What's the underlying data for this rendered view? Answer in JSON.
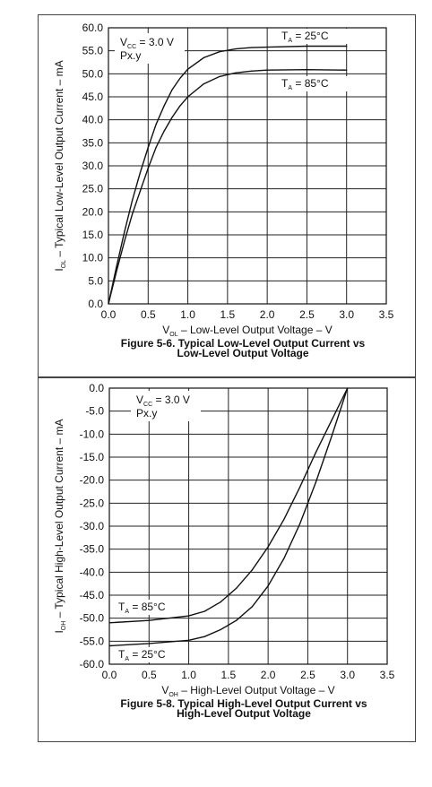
{
  "chart_data": [
    {
      "type": "line",
      "caption_line1": "Figure 5-6. Typical Low-Level Output Current vs",
      "caption_line2": "Low-Level Output Voltage",
      "xlabel": {
        "prefix": "V",
        "sub": "OL",
        "rest": " – Low-Level Output Voltage – V"
      },
      "ylabel": {
        "prefix": "I",
        "sub": "OL",
        "rest": " – Typical Low-Level Output Current – mA"
      },
      "xlim": [
        0,
        3.5
      ],
      "ylim": [
        0,
        60
      ],
      "x_ticks": [
        "0.0",
        "0.5",
        "1.0",
        "1.5",
        "2.0",
        "2.5",
        "3.0",
        "3.5"
      ],
      "y_ticks": [
        "60.0",
        "55.0",
        "50.0",
        "45.0",
        "40.0",
        "35.0",
        "30.0",
        "25.0",
        "20.0",
        "15.0",
        "10.0",
        "5.0",
        "0.0"
      ],
      "grid": true,
      "condition": {
        "line1_prefix": "V",
        "line1_sub": "CC",
        "line1_rest": " = 3.0 V",
        "line2": "Px.y"
      },
      "series": [
        {
          "name": {
            "prefix": "T",
            "sub": "A",
            "rest": " = 25°C"
          },
          "x": [
            0,
            0.1,
            0.2,
            0.3,
            0.4,
            0.5,
            0.6,
            0.7,
            0.8,
            0.9,
            1.0,
            1.2,
            1.4,
            1.6,
            1.8,
            2.0,
            2.5,
            3.0
          ],
          "y": [
            0,
            8,
            15.5,
            22.5,
            28.5,
            34,
            39,
            43,
            46.5,
            49,
            51,
            53.5,
            54.8,
            55.4,
            55.7,
            55.8,
            56,
            56
          ]
        },
        {
          "name": {
            "prefix": "T",
            "sub": "A",
            "rest": " = 85°C"
          },
          "x": [
            0,
            0.1,
            0.2,
            0.3,
            0.4,
            0.5,
            0.6,
            0.7,
            0.8,
            0.9,
            1.0,
            1.2,
            1.4,
            1.6,
            1.8,
            2.0,
            2.5,
            3.0
          ],
          "y": [
            0,
            7,
            13.5,
            19.5,
            24.5,
            29.5,
            34,
            37.5,
            40.5,
            43,
            45,
            47.8,
            49.4,
            50.2,
            50.6,
            50.8,
            50.9,
            50.8
          ]
        }
      ]
    },
    {
      "type": "line",
      "caption_line1": "Figure 5-8. Typical High-Level Output Current vs",
      "caption_line2": "High-Level Output Voltage",
      "xlabel": {
        "prefix": "V",
        "sub": "OH",
        "rest": " – High-Level Output Voltage – V"
      },
      "ylabel": {
        "prefix": "I",
        "sub": "OH",
        "rest": " – Typical High-Level Output Current – mA"
      },
      "xlim": [
        0,
        3.5
      ],
      "ylim": [
        -60,
        0
      ],
      "x_ticks": [
        "0.0",
        "0.5",
        "1.0",
        "1.5",
        "2.0",
        "2.5",
        "3.0",
        "3.5"
      ],
      "y_ticks": [
        "0.0",
        "-5.0",
        "-10.0",
        "-15.0",
        "-20.0",
        "-25.0",
        "-30.0",
        "-35.0",
        "-40.0",
        "-45.0",
        "-50.0",
        "-55.0",
        "-60.0"
      ],
      "grid": true,
      "condition": {
        "line1_prefix": "V",
        "line1_sub": "CC",
        "line1_rest": " = 3.0 V",
        "line2": "Px.y"
      },
      "series": [
        {
          "name": {
            "prefix": "T",
            "sub": "A",
            "rest": " = 85°C"
          },
          "x": [
            0,
            0.5,
            1.0,
            1.2,
            1.4,
            1.6,
            1.8,
            2.0,
            2.2,
            2.4,
            2.6,
            2.8,
            3.0
          ],
          "y": [
            -51,
            -50.5,
            -49.5,
            -48.5,
            -46.5,
            -43.5,
            -39.5,
            -34.5,
            -28.5,
            -21.5,
            -14,
            -7,
            0
          ]
        },
        {
          "name": {
            "prefix": "T",
            "sub": "A",
            "rest": " = 25°C"
          },
          "x": [
            0,
            0.5,
            1.0,
            1.2,
            1.4,
            1.6,
            1.8,
            2.0,
            2.2,
            2.4,
            2.6,
            2.8,
            3.0
          ],
          "y": [
            -56,
            -55.5,
            -54.8,
            -54,
            -52.5,
            -50.5,
            -47.5,
            -43,
            -37,
            -29.5,
            -20.5,
            -10.5,
            0
          ]
        }
      ]
    }
  ]
}
